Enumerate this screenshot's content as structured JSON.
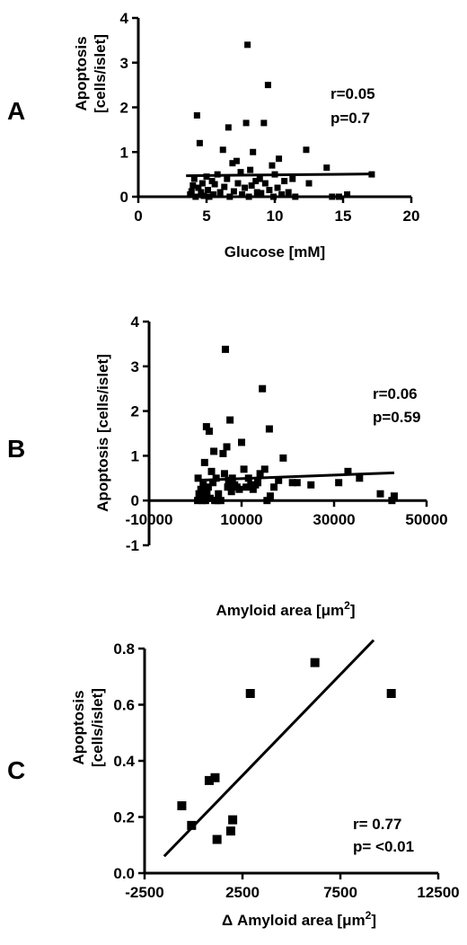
{
  "chart_data": [
    {
      "panel": "A",
      "type": "scatter",
      "xlabel": "Glucose [mM]",
      "ylabel_lines": [
        "Apoptosis",
        "[cells/islet]"
      ],
      "xlim": [
        0,
        20
      ],
      "ylim": [
        0,
        4
      ],
      "xticks": [
        0,
        5,
        10,
        15,
        20
      ],
      "yticks": [
        0,
        1,
        2,
        3,
        4
      ],
      "annotation_lines": [
        "r=0.05",
        "p=0.7"
      ],
      "points": [
        [
          3.8,
          0.05
        ],
        [
          3.9,
          0.12
        ],
        [
          4.0,
          0.25
        ],
        [
          4.1,
          0.4
        ],
        [
          4.2,
          0.0
        ],
        [
          4.3,
          1.82
        ],
        [
          4.4,
          0.2
        ],
        [
          4.5,
          1.2
        ],
        [
          4.6,
          0.1
        ],
        [
          4.7,
          0.3
        ],
        [
          4.8,
          0.02
        ],
        [
          5.0,
          0.45
        ],
        [
          5.1,
          0.15
        ],
        [
          5.2,
          0.0
        ],
        [
          5.4,
          0.35
        ],
        [
          5.5,
          0.05
        ],
        [
          5.6,
          0.28
        ],
        [
          5.8,
          0.5
        ],
        [
          6.0,
          0.1
        ],
        [
          6.2,
          1.05
        ],
        [
          6.3,
          0.22
        ],
        [
          6.5,
          0.4
        ],
        [
          6.6,
          1.55
        ],
        [
          6.7,
          0.0
        ],
        [
          6.9,
          0.75
        ],
        [
          7.0,
          0.12
        ],
        [
          7.2,
          0.8
        ],
        [
          7.3,
          0.3
        ],
        [
          7.5,
          0.55
        ],
        [
          7.6,
          0.05
        ],
        [
          7.8,
          0.2
        ],
        [
          7.9,
          1.65
        ],
        [
          8.0,
          3.4
        ],
        [
          8.1,
          0.0
        ],
        [
          8.2,
          0.6
        ],
        [
          8.3,
          0.25
        ],
        [
          8.4,
          1.0
        ],
        [
          8.6,
          0.35
        ],
        [
          8.7,
          0.1
        ],
        [
          8.9,
          0.4
        ],
        [
          9.0,
          0.08
        ],
        [
          9.2,
          1.65
        ],
        [
          9.3,
          0.3
        ],
        [
          9.5,
          2.5
        ],
        [
          9.6,
          0.15
        ],
        [
          9.8,
          0.7
        ],
        [
          9.9,
          0.0
        ],
        [
          10.0,
          0.5
        ],
        [
          10.2,
          0.2
        ],
        [
          10.3,
          0.85
        ],
        [
          10.5,
          0.05
        ],
        [
          10.7,
          0.35
        ],
        [
          11.0,
          0.1
        ],
        [
          11.3,
          0.4
        ],
        [
          11.5,
          0.0
        ],
        [
          12.3,
          1.05
        ],
        [
          12.5,
          0.3
        ],
        [
          13.8,
          0.65
        ],
        [
          14.2,
          0.0
        ],
        [
          14.7,
          0.0
        ],
        [
          15.3,
          0.05
        ],
        [
          17.1,
          0.5
        ]
      ],
      "fit_line": [
        [
          3.5,
          0.47
        ],
        [
          17.2,
          0.51
        ]
      ]
    },
    {
      "panel": "B",
      "type": "scatter",
      "xlabel_text": "Amyloid area [",
      "xlabel_unit": "μm",
      "xlabel_sup": "2",
      "xlabel_close": "]",
      "ylabel_lines": [
        "Apoptosis [cells/islet]"
      ],
      "xlim": [
        -10000,
        50000
      ],
      "ylim": [
        -1,
        4
      ],
      "xticks": [
        -10000,
        10000,
        30000,
        50000
      ],
      "yticks": [
        -1,
        0,
        1,
        2,
        3,
        4
      ],
      "annotation_lines": [
        "r=0.06",
        "p=0.59"
      ],
      "points": [
        [
          500,
          0.0
        ],
        [
          600,
          0.5
        ],
        [
          800,
          0.15
        ],
        [
          1000,
          0.05
        ],
        [
          1200,
          0.25
        ],
        [
          1500,
          0.0
        ],
        [
          1700,
          0.35
        ],
        [
          1800,
          0.1
        ],
        [
          2000,
          0.85
        ],
        [
          2200,
          0.0
        ],
        [
          2400,
          1.65
        ],
        [
          2500,
          0.2
        ],
        [
          2800,
          0.3
        ],
        [
          3000,
          1.55
        ],
        [
          3200,
          0.05
        ],
        [
          3500,
          0.65
        ],
        [
          3800,
          0.4
        ],
        [
          4000,
          1.1
        ],
        [
          4200,
          0.0
        ],
        [
          4500,
          0.5
        ],
        [
          4800,
          0.0
        ],
        [
          5000,
          0.15
        ],
        [
          5500,
          0.0
        ],
        [
          6000,
          1.05
        ],
        [
          6300,
          0.6
        ],
        [
          6500,
          3.38
        ],
        [
          6800,
          1.2
        ],
        [
          7000,
          0.3
        ],
        [
          7200,
          0.45
        ],
        [
          7500,
          1.8
        ],
        [
          7800,
          0.2
        ],
        [
          8000,
          0.5
        ],
        [
          8500,
          0.35
        ],
        [
          9000,
          0.3
        ],
        [
          9500,
          0.25
        ],
        [
          10000,
          1.3
        ],
        [
          10500,
          0.7
        ],
        [
          11000,
          0.3
        ],
        [
          11500,
          0.5
        ],
        [
          12000,
          0.35
        ],
        [
          12500,
          0.25
        ],
        [
          13000,
          0.35
        ],
        [
          13500,
          0.4
        ],
        [
          14000,
          0.6
        ],
        [
          14500,
          2.5
        ],
        [
          15000,
          0.7
        ],
        [
          15500,
          0.0
        ],
        [
          16000,
          1.6
        ],
        [
          16200,
          0.1
        ],
        [
          17000,
          0.3
        ],
        [
          18000,
          0.45
        ],
        [
          19000,
          0.95
        ],
        [
          21000,
          0.4
        ],
        [
          22000,
          0.4
        ],
        [
          25000,
          0.35
        ],
        [
          31000,
          0.4
        ],
        [
          33000,
          0.65
        ],
        [
          35500,
          0.5
        ],
        [
          40000,
          0.15
        ],
        [
          42500,
          0.0
        ],
        [
          43000,
          0.1
        ]
      ],
      "fit_line": [
        [
          0,
          0.45
        ],
        [
          43000,
          0.62
        ]
      ]
    },
    {
      "panel": "C",
      "type": "scatter",
      "xlabel_prefix": "Δ",
      "xlabel_text": " Amyloid area [",
      "xlabel_unit": "μm",
      "xlabel_sup": "2",
      "xlabel_close": "]",
      "ylabel_lines": [
        "Apoptosis",
        "[cells/islet]"
      ],
      "xlim": [
        -2500,
        12500
      ],
      "ylim": [
        0,
        0.8
      ],
      "xticks": [
        -2500,
        2500,
        7500,
        12500
      ],
      "yticks": [
        0.0,
        0.2,
        0.4,
        0.6,
        0.8
      ],
      "ytick_labels": [
        "0.0",
        "0.2",
        "0.4",
        "0.6",
        "0.8"
      ],
      "annotation_lines": [
        "r= 0.77",
        "p= <0.01"
      ],
      "points": [
        [
          -600,
          0.24
        ],
        [
          -100,
          0.17
        ],
        [
          800,
          0.33
        ],
        [
          1100,
          0.34
        ],
        [
          1200,
          0.12
        ],
        [
          1900,
          0.15
        ],
        [
          2000,
          0.19
        ],
        [
          2900,
          0.64
        ],
        [
          6200,
          0.75
        ],
        [
          10100,
          0.64
        ]
      ],
      "fit_line": [
        [
          -1500,
          0.06
        ],
        [
          9200,
          0.83
        ]
      ]
    }
  ],
  "panel_letters": [
    "A",
    "B",
    "C"
  ]
}
